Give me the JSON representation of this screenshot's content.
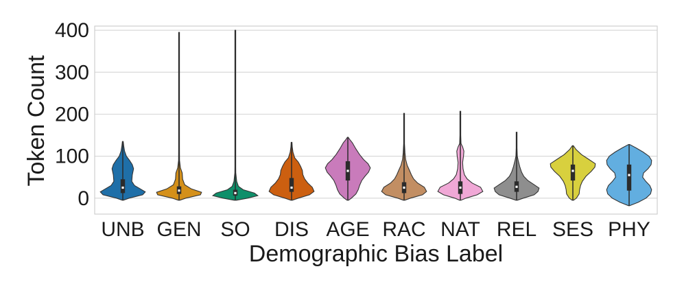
{
  "chart_data": {
    "type": "violin",
    "xlabel": "Demographic Bias Label",
    "ylabel": "Token Count",
    "ylim": [
      -38,
      410
    ],
    "yticks": [
      0,
      100,
      200,
      300,
      400
    ],
    "grid": true,
    "categories": [
      "UNB",
      "GEN",
      "SO",
      "DIS",
      "AGE",
      "RAC",
      "NAT",
      "REL",
      "SES",
      "PHY"
    ],
    "series": [
      {
        "category": "UNB",
        "color": "#1f6fa8",
        "min": -5,
        "max": 135,
        "q1": 12,
        "median": 25,
        "q3": 45,
        "profile": [
          [
            -5,
            0.02
          ],
          [
            0,
            0.28
          ],
          [
            8,
            0.88
          ],
          [
            15,
            1.0
          ],
          [
            22,
            0.78
          ],
          [
            30,
            0.52
          ],
          [
            40,
            0.4
          ],
          [
            55,
            0.42
          ],
          [
            70,
            0.48
          ],
          [
            80,
            0.42
          ],
          [
            90,
            0.3
          ],
          [
            100,
            0.16
          ],
          [
            112,
            0.08
          ],
          [
            125,
            0.04
          ],
          [
            135,
            0.01
          ]
        ]
      },
      {
        "category": "GEN",
        "color": "#d4901a",
        "min": -5,
        "max": 395,
        "q1": 10,
        "median": 18,
        "q3": 28,
        "profile": [
          [
            -5,
            0.03
          ],
          [
            0,
            0.3
          ],
          [
            8,
            0.95
          ],
          [
            14,
            1.0
          ],
          [
            22,
            0.55
          ],
          [
            32,
            0.25
          ],
          [
            45,
            0.16
          ],
          [
            60,
            0.14
          ],
          [
            72,
            0.06
          ],
          [
            90,
            0.02
          ],
          [
            120,
            0.008
          ],
          [
            200,
            0.005
          ],
          [
            300,
            0.004
          ],
          [
            395,
            0.003
          ]
        ]
      },
      {
        "category": "SO",
        "color": "#0f8f6a",
        "min": -5,
        "max": 400,
        "q1": 6,
        "median": 12,
        "q3": 20,
        "profile": [
          [
            -5,
            0.05
          ],
          [
            0,
            0.55
          ],
          [
            6,
            1.0
          ],
          [
            12,
            0.85
          ],
          [
            20,
            0.35
          ],
          [
            28,
            0.14
          ],
          [
            40,
            0.06
          ],
          [
            60,
            0.02
          ],
          [
            75,
            0.01
          ],
          [
            150,
            0.005
          ],
          [
            300,
            0.004
          ],
          [
            400,
            0.003
          ]
        ]
      },
      {
        "category": "DIS",
        "color": "#cc5f10",
        "min": -5,
        "max": 133,
        "q1": 15,
        "median": 25,
        "q3": 48,
        "profile": [
          [
            -5,
            0.03
          ],
          [
            0,
            0.3
          ],
          [
            8,
            0.8
          ],
          [
            16,
            1.0
          ],
          [
            26,
            0.92
          ],
          [
            36,
            0.72
          ],
          [
            46,
            0.58
          ],
          [
            56,
            0.5
          ],
          [
            66,
            0.48
          ],
          [
            76,
            0.4
          ],
          [
            86,
            0.3
          ],
          [
            96,
            0.14
          ],
          [
            110,
            0.06
          ],
          [
            122,
            0.03
          ],
          [
            133,
            0.01
          ]
        ]
      },
      {
        "category": "AGE",
        "color": "#c97bbb",
        "min": -5,
        "max": 145,
        "q1": 42,
        "median": 65,
        "q3": 88,
        "profile": [
          [
            -5,
            0.03
          ],
          [
            0,
            0.16
          ],
          [
            10,
            0.36
          ],
          [
            20,
            0.46
          ],
          [
            30,
            0.52
          ],
          [
            42,
            0.62
          ],
          [
            52,
            0.76
          ],
          [
            62,
            0.92
          ],
          [
            72,
            1.0
          ],
          [
            82,
            0.9
          ],
          [
            92,
            0.7
          ],
          [
            104,
            0.52
          ],
          [
            118,
            0.35
          ],
          [
            132,
            0.2
          ],
          [
            140,
            0.08
          ],
          [
            145,
            0.01
          ]
        ]
      },
      {
        "category": "RAC",
        "color": "#c28e63",
        "min": -5,
        "max": 202,
        "q1": 12,
        "median": 25,
        "q3": 38,
        "profile": [
          [
            -5,
            0.03
          ],
          [
            0,
            0.28
          ],
          [
            8,
            0.82
          ],
          [
            16,
            1.0
          ],
          [
            26,
            0.9
          ],
          [
            36,
            0.6
          ],
          [
            46,
            0.42
          ],
          [
            56,
            0.32
          ],
          [
            66,
            0.24
          ],
          [
            78,
            0.14
          ],
          [
            92,
            0.07
          ],
          [
            108,
            0.04
          ],
          [
            130,
            0.01
          ],
          [
            202,
            0.004
          ]
        ]
      },
      {
        "category": "NAT",
        "color": "#f0a8d6",
        "min": -5,
        "max": 207,
        "q1": 10,
        "median": 25,
        "q3": 40,
        "profile": [
          [
            -5,
            0.03
          ],
          [
            0,
            0.25
          ],
          [
            8,
            0.75
          ],
          [
            16,
            1.0
          ],
          [
            26,
            0.9
          ],
          [
            36,
            0.52
          ],
          [
            46,
            0.3
          ],
          [
            56,
            0.18
          ],
          [
            70,
            0.12
          ],
          [
            85,
            0.1
          ],
          [
            100,
            0.14
          ],
          [
            112,
            0.16
          ],
          [
            122,
            0.1
          ],
          [
            130,
            0.03
          ],
          [
            150,
            0.01
          ],
          [
            207,
            0.004
          ]
        ]
      },
      {
        "category": "REL",
        "color": "#8e8e8e",
        "min": -5,
        "max": 157,
        "q1": 15,
        "median": 27,
        "q3": 40,
        "profile": [
          [
            -5,
            0.03
          ],
          [
            0,
            0.3
          ],
          [
            8,
            0.78
          ],
          [
            16,
            0.95
          ],
          [
            24,
            1.0
          ],
          [
            32,
            0.78
          ],
          [
            42,
            0.5
          ],
          [
            52,
            0.32
          ],
          [
            62,
            0.22
          ],
          [
            75,
            0.14
          ],
          [
            90,
            0.07
          ],
          [
            100,
            0.03
          ],
          [
            120,
            0.01
          ],
          [
            157,
            0.004
          ]
        ]
      },
      {
        "category": "SES",
        "color": "#d8d03e",
        "min": -5,
        "max": 125,
        "q1": 42,
        "median": 65,
        "q3": 80,
        "profile": [
          [
            -5,
            0.03
          ],
          [
            0,
            0.16
          ],
          [
            10,
            0.28
          ],
          [
            20,
            0.3
          ],
          [
            30,
            0.34
          ],
          [
            40,
            0.42
          ],
          [
            52,
            0.58
          ],
          [
            64,
            0.82
          ],
          [
            74,
            0.98
          ],
          [
            82,
            1.0
          ],
          [
            92,
            0.72
          ],
          [
            104,
            0.38
          ],
          [
            116,
            0.14
          ],
          [
            125,
            0.02
          ]
        ]
      },
      {
        "category": "PHY",
        "color": "#62aee0",
        "min": -18,
        "max": 128,
        "q1": 18,
        "median": 55,
        "q3": 80,
        "profile": [
          [
            -18,
            0.02
          ],
          [
            -10,
            0.4
          ],
          [
            0,
            0.75
          ],
          [
            10,
            0.95
          ],
          [
            20,
            1.0
          ],
          [
            30,
            0.92
          ],
          [
            40,
            0.74
          ],
          [
            50,
            0.6
          ],
          [
            60,
            0.64
          ],
          [
            70,
            0.84
          ],
          [
            80,
            0.98
          ],
          [
            90,
            1.0
          ],
          [
            100,
            0.88
          ],
          [
            110,
            0.62
          ],
          [
            120,
            0.3
          ],
          [
            128,
            0.02
          ]
        ]
      }
    ]
  }
}
